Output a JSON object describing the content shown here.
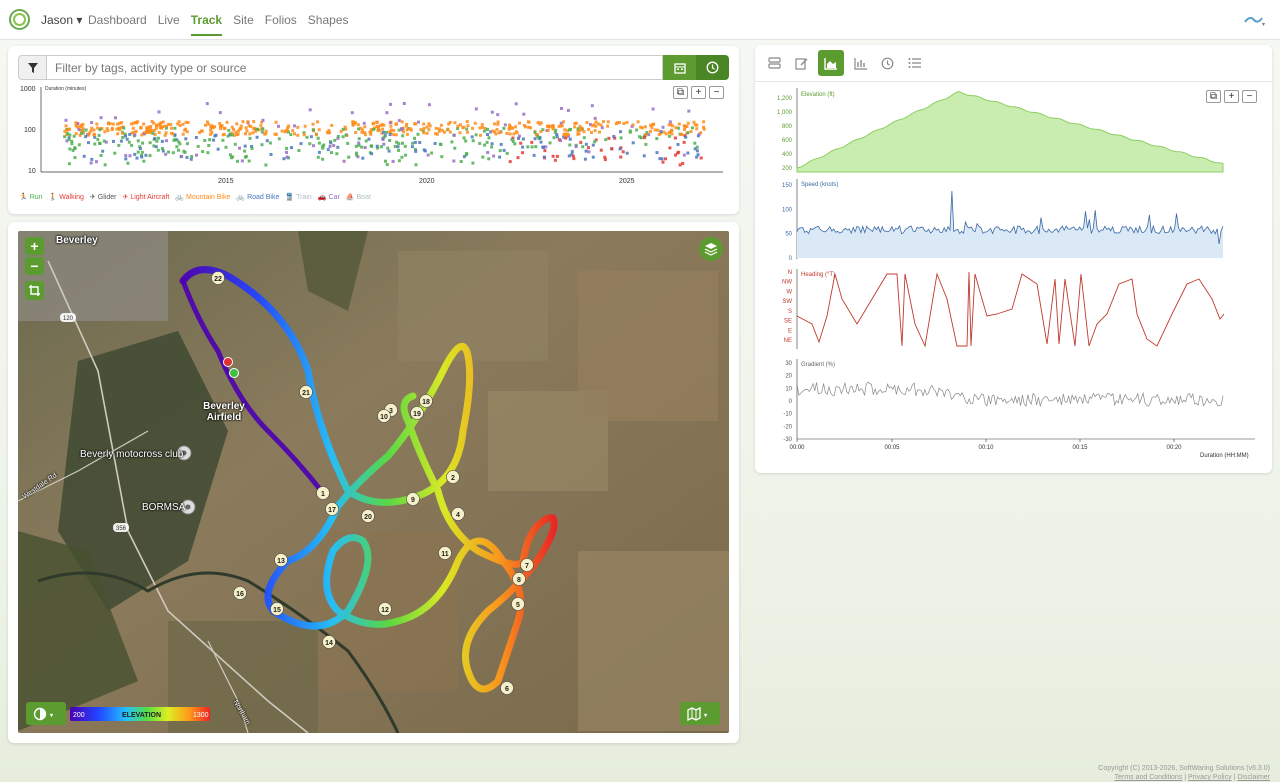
{
  "nav": {
    "user": "Jason",
    "menu": [
      {
        "label": "Dashboard",
        "active": false
      },
      {
        "label": "Live",
        "active": false
      },
      {
        "label": "Track",
        "active": true
      },
      {
        "label": "Site",
        "active": false
      },
      {
        "label": "Folios",
        "active": false
      },
      {
        "label": "Shapes",
        "active": false
      }
    ]
  },
  "search": {
    "placeholder": "Filter by tags, activity type or source"
  },
  "timeline": {
    "ylabel": "Duration (minutes)",
    "yticks": [
      "1000",
      "100",
      "10"
    ],
    "xticks": [
      "2015",
      "2020",
      "2025"
    ]
  },
  "legend": [
    {
      "label": "Run",
      "color": "#4caf50"
    },
    {
      "label": "Walking",
      "color": "#e53935"
    },
    {
      "label": "Glider",
      "color": "#555555"
    },
    {
      "label": "Light Aircraft",
      "color": "#e53935"
    },
    {
      "label": "Mountain Bike",
      "color": "#ff8c1a"
    },
    {
      "label": "Road Bike",
      "color": "#4a78c0"
    },
    {
      "label": "Train",
      "color": "#b0bec5"
    },
    {
      "label": "Car",
      "color": "#9a6cc8"
    },
    {
      "label": "Boat",
      "color": "#b0bec5"
    }
  ],
  "map": {
    "places": [
      "Beverley",
      "Beverley Airfield",
      "Beverly motocross club",
      "BORMSA",
      "Westdale Rd",
      "Northam"
    ],
    "road_signs": [
      "120",
      "356"
    ],
    "markers": [
      "1",
      "2",
      "3",
      "4",
      "5",
      "6",
      "7",
      "8",
      "9",
      "10",
      "11",
      "12",
      "13",
      "14",
      "15",
      "16",
      "17",
      "18",
      "19",
      "20",
      "21",
      "22"
    ],
    "elevation_legend": {
      "label": "ELEVATION",
      "min": "200",
      "max": "1300"
    }
  },
  "charts": {
    "elevation": {
      "label": "Elevation (ft)",
      "ticks": [
        "1,200",
        "1,000",
        "800",
        "600",
        "400",
        "200"
      ]
    },
    "speed": {
      "label": "Speed (knots)",
      "ticks": [
        "150",
        "100",
        "50",
        "0"
      ]
    },
    "heading": {
      "label": "Heading (°T)",
      "ticks": [
        "N",
        "NW",
        "W",
        "SW",
        "S",
        "SE",
        "E",
        "NE"
      ]
    },
    "gradient": {
      "label": "Gradient (%)",
      "ticks": [
        "30",
        "20",
        "10",
        "0",
        "-10",
        "-20",
        "-30"
      ]
    },
    "xticks": [
      "00:00",
      "00:05",
      "00:10",
      "00:15",
      "00:20"
    ],
    "xlabel": "Duration (HH:MM)"
  },
  "footer": {
    "copyright": "Copyright (C) 2013-2026, SoftWaring Solutions (v6.3.0)",
    "links": [
      "Terms and Conditions",
      "Privacy Policy",
      "Disclaimer"
    ]
  }
}
